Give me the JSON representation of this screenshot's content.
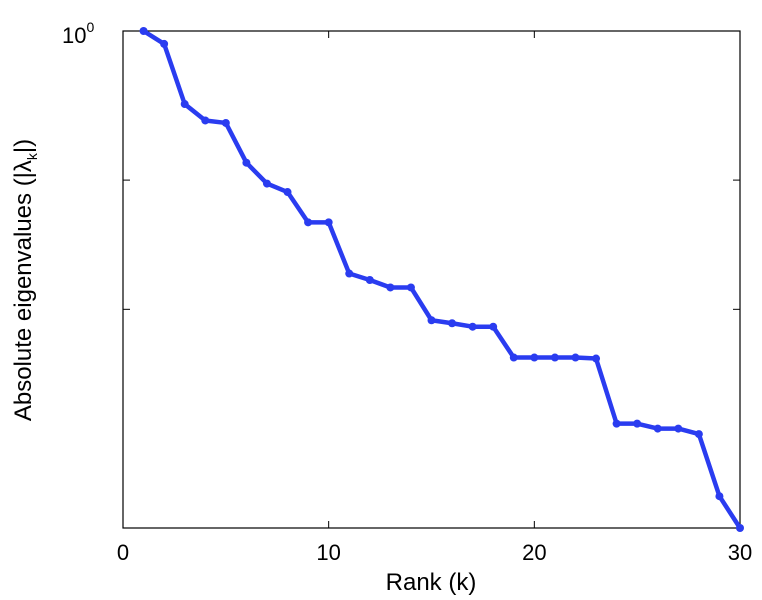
{
  "chart_data": {
    "type": "line",
    "xlabel": "Rank (k)",
    "ylabel_parts": {
      "main": "Absolute eigenvalues (|λ",
      "sub": "k",
      "end": "|)"
    },
    "xlim": [
      0,
      30
    ],
    "x_ticks": [
      "0",
      "10",
      "20",
      "30"
    ],
    "y_scale": "log",
    "y_tick_label": {
      "base": "10",
      "exp": "0"
    },
    "grid": false,
    "series_color": "#2a3cf0",
    "x": [
      1,
      2,
      3,
      4,
      5,
      6,
      7,
      8,
      9,
      10,
      11,
      12,
      13,
      14,
      15,
      16,
      17,
      18,
      19,
      20,
      21,
      22,
      23,
      24,
      25,
      26,
      27,
      28,
      29,
      30
    ],
    "y_relative": [
      1.0,
      0.974,
      0.853,
      0.82,
      0.815,
      0.735,
      0.693,
      0.676,
      0.615,
      0.615,
      0.512,
      0.499,
      0.484,
      0.484,
      0.418,
      0.412,
      0.405,
      0.405,
      0.343,
      0.343,
      0.343,
      0.343,
      0.341,
      0.21,
      0.21,
      0.2,
      0.2,
      0.189,
      0.064,
      0.0
    ]
  }
}
